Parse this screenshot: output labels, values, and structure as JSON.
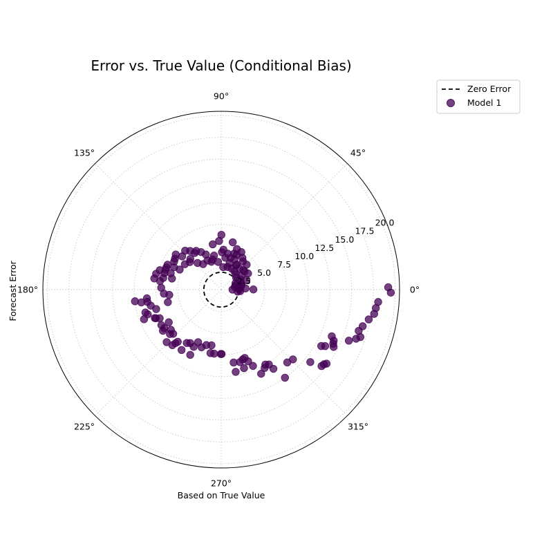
{
  "chart_data": {
    "type": "scatter",
    "projection": "polar",
    "title": "Error vs. True Value (Conditional Bias)",
    "xlabel": "Based on True Value",
    "ylabel": "Forecast Error",
    "theta_tick_labels": [
      "0°",
      "45°",
      "90°",
      "135°",
      "180°",
      "225°",
      "270°",
      "315°"
    ],
    "theta_ticks_deg": [
      0,
      45,
      90,
      135,
      180,
      225,
      270,
      315
    ],
    "r_tick_labels": [
      "2.5",
      "5.0",
      "7.5",
      "10.0",
      "12.5",
      "15.0",
      "17.5",
      "20.0"
    ],
    "r_ticks": [
      2.5,
      5.0,
      7.5,
      10.0,
      12.5,
      15.0,
      17.5,
      20.0
    ],
    "rlim": [
      0,
      20.5
    ],
    "grid": true,
    "legend_position": "upper-right-outside",
    "zero_error_radius": 2,
    "series": [
      {
        "name": "Zero Error",
        "kind": "line",
        "style": "dashed",
        "color": "#000000"
      },
      {
        "name": "Model 1",
        "kind": "scatter",
        "color": "#440154",
        "alpha": 0.75,
        "points": [
          {
            "theta": 0.8,
            "r": 19.2
          },
          {
            "theta": -1.0,
            "r": 19.5
          },
          {
            "theta": -4.5,
            "r": 18.1
          },
          {
            "theta": -6.8,
            "r": 17.9
          },
          {
            "theta": -9.0,
            "r": 17.8
          },
          {
            "theta": -11.4,
            "r": 17.3
          },
          {
            "theta": -14.5,
            "r": 16.8
          },
          {
            "theta": -16.7,
            "r": 16.5
          },
          {
            "theta": -18.8,
            "r": 16.9
          },
          {
            "theta": -20.0,
            "r": 16.5
          },
          {
            "theta": -21.8,
            "r": 15.8
          },
          {
            "theta": -22.9,
            "r": 13.8
          },
          {
            "theta": -24.4,
            "r": 14.2
          },
          {
            "theta": -25.8,
            "r": 14.3
          },
          {
            "theta": -27.0,
            "r": 14.5
          },
          {
            "theta": -28.5,
            "r": 13.6
          },
          {
            "theta": -29.4,
            "r": 13.2
          },
          {
            "theta": -35.1,
            "r": 14.8
          },
          {
            "theta": -36.0,
            "r": 14.6
          },
          {
            "theta": -37.3,
            "r": 14.5
          },
          {
            "theta": -39.1,
            "r": 13.2
          },
          {
            "theta": -44.2,
            "r": 11.5
          },
          {
            "theta": -47.8,
            "r": 11.3
          },
          {
            "theta": -54.1,
            "r": 12.5
          },
          {
            "theta": -56.6,
            "r": 10.9
          },
          {
            "theta": -57.5,
            "r": 10.2
          },
          {
            "theta": -59.5,
            "r": 10.0
          },
          {
            "theta": -61.0,
            "r": 10.3
          },
          {
            "theta": -64.6,
            "r": 10.7
          },
          {
            "theta": -67.4,
            "r": 9.5
          },
          {
            "theta": -69.4,
            "r": 8.8
          },
          {
            "theta": -71.0,
            "r": 8.3
          },
          {
            "theta": -72.9,
            "r": 8.4
          },
          {
            "theta": -73.8,
            "r": 9.4
          },
          {
            "theta": -75.5,
            "r": 8.6
          },
          {
            "theta": -80.0,
            "r": 9.6
          },
          {
            "theta": -80.3,
            "r": 8.5
          },
          {
            "theta": -89.6,
            "r": 7.4
          },
          {
            "theta": -90.4,
            "r": 7.4
          },
          {
            "theta": -96.3,
            "r": 7.4
          },
          {
            "theta": -99.6,
            "r": 7.4
          },
          {
            "theta": -99.9,
            "r": 6.5
          },
          {
            "theta": -105.0,
            "r": 6.6
          },
          {
            "theta": -108.8,
            "r": 7.0
          },
          {
            "theta": -113.7,
            "r": 6.6
          },
          {
            "theta": -115.7,
            "r": 7.3
          },
          {
            "theta": -115.4,
            "r": 8.3
          },
          {
            "theta": -120.1,
            "r": 7.1
          },
          {
            "theta": -122.8,
            "r": 7.3
          },
          {
            "theta": -123.3,
            "r": 8.3
          },
          {
            "theta": -129.8,
            "r": 7.8
          },
          {
            "theta": -130.5,
            "r": 8.1
          },
          {
            "theta": -131.3,
            "r": 8.5
          },
          {
            "theta": -136.1,
            "r": 8.7
          },
          {
            "theta": -137.4,
            "r": 7.5
          },
          {
            "theta": -139.1,
            "r": 7.8
          },
          {
            "theta": -141.4,
            "r": 7.4
          },
          {
            "theta": -144.8,
            "r": 8.2
          },
          {
            "theta": -145.9,
            "r": 7.9
          },
          {
            "theta": -148.1,
            "r": 7.1
          },
          {
            "theta": -149.3,
            "r": 8.0
          },
          {
            "theta": -155.0,
            "r": 7.8
          },
          {
            "theta": -156.4,
            "r": 8.2
          },
          {
            "theta": -156.8,
            "r": 8.3
          },
          {
            "theta": -159.0,
            "r": 9.5
          },
          {
            "theta": -161.4,
            "r": 8.9
          },
          {
            "theta": -163.2,
            "r": 9.1
          },
          {
            "theta": -163.4,
            "r": 7.8
          },
          {
            "theta": -166.8,
            "r": 6.3
          },
          {
            "theta": -167.2,
            "r": 8.3
          },
          {
            "theta": -170.6,
            "r": 8.6
          },
          {
            "theta": -170.9,
            "r": 9.3
          },
          {
            "theta": -172.3,
            "r": 10.0
          },
          {
            "theta": -173.3,
            "r": 8.6
          },
          {
            "theta": -174.2,
            "r": 6.0
          },
          {
            "theta": -176.0,
            "r": 6.6
          },
          {
            "theta": 178.2,
            "r": 6.9
          },
          {
            "theta": 172.0,
            "r": 7.1
          },
          {
            "theta": 170.5,
            "r": 7.8
          },
          {
            "theta": 168.6,
            "r": 6.8
          },
          {
            "theta": 167.3,
            "r": 5.8
          },
          {
            "theta": 166.3,
            "r": 7.7
          },
          {
            "theta": 163.8,
            "r": 6.8
          },
          {
            "theta": 162.4,
            "r": 7.4
          },
          {
            "theta": 162.0,
            "r": 6.1
          },
          {
            "theta": 160.2,
            "r": 6.8
          },
          {
            "theta": 157.9,
            "r": 6.8
          },
          {
            "theta": 155.1,
            "r": 6.8
          },
          {
            "theta": 154.6,
            "r": 6.0
          },
          {
            "theta": 154.2,
            "r": 5.3
          },
          {
            "theta": 149.2,
            "r": 6.3
          },
          {
            "theta": 146.2,
            "r": 6.4
          },
          {
            "theta": 145.0,
            "r": 5.1
          },
          {
            "theta": 142.3,
            "r": 6.6
          },
          {
            "theta": 139.6,
            "r": 5.9
          },
          {
            "theta": 138.7,
            "r": 4.8
          },
          {
            "theta": 135.2,
            "r": 5.0
          },
          {
            "theta": 132.8,
            "r": 6.1
          },
          {
            "theta": 131.6,
            "r": 4.1
          },
          {
            "theta": 128.8,
            "r": 5.7
          },
          {
            "theta": 125.8,
            "r": 5.2
          },
          {
            "theta": 125.4,
            "r": 3.6
          },
          {
            "theta": 122.9,
            "r": 5.3
          },
          {
            "theta": 118.2,
            "r": 4.9
          },
          {
            "theta": 115.2,
            "r": 3.7
          },
          {
            "theta": 113.5,
            "r": 4.4
          },
          {
            "theta": 109.4,
            "r": 3.4
          },
          {
            "theta": 106.0,
            "r": 3.6
          },
          {
            "theta": 101.9,
            "r": 4.0
          },
          {
            "theta": 100.6,
            "r": 5.3
          },
          {
            "theta": 96.3,
            "r": 3.2
          },
          {
            "theta": 92.5,
            "r": 5.6
          },
          {
            "theta": 89.8,
            "r": 6.3
          },
          {
            "theta": 86.8,
            "r": 4.6
          },
          {
            "theta": 84.8,
            "r": 2.6
          },
          {
            "theta": 82.6,
            "r": 3.7
          },
          {
            "theta": 79.6,
            "r": 4.2
          },
          {
            "theta": 76.3,
            "r": 5.6
          },
          {
            "theta": 74.6,
            "r": 2.7
          },
          {
            "theta": 72.4,
            "r": 3.2
          },
          {
            "theta": 70.3,
            "r": 4.4
          },
          {
            "theta": 68.8,
            "r": 5.0
          },
          {
            "theta": 66.3,
            "r": 3.8
          },
          {
            "theta": 64.0,
            "r": 2.7
          },
          {
            "theta": 61.8,
            "r": 4.9
          },
          {
            "theta": 58.6,
            "r": 3.3
          },
          {
            "theta": 56.3,
            "r": 4.4
          },
          {
            "theta": 54.4,
            "r": 2.6
          },
          {
            "theta": 52.3,
            "r": 4.1
          },
          {
            "theta": 48.6,
            "r": 3.2
          },
          {
            "theta": 46.2,
            "r": 2.4
          },
          {
            "theta": 44.5,
            "r": 4.1
          },
          {
            "theta": 41.5,
            "r": 3.4
          },
          {
            "theta": 38.6,
            "r": 2.2
          },
          {
            "theta": 34.4,
            "r": 2.8
          },
          {
            "theta": 31.1,
            "r": 3.6
          },
          {
            "theta": 28.4,
            "r": 2.5
          },
          {
            "theta": 24.0,
            "r": 1.8
          },
          {
            "theta": 20.9,
            "r": 3.1
          },
          {
            "theta": 16.3,
            "r": 1.7
          },
          {
            "theta": 12.7,
            "r": 2.4
          },
          {
            "theta": 9.8,
            "r": 2.3
          },
          {
            "theta": 5.9,
            "r": 2.0
          },
          {
            "theta": 3.0,
            "r": 2.8
          },
          {
            "theta": 0.8,
            "r": 2.1
          },
          {
            "theta": 0.3,
            "r": 1.3
          },
          {
            "theta": -6.8,
            "r": 1.9
          },
          {
            "theta": -4.3,
            "r": 2.2
          },
          {
            "theta": 0.3,
            "r": 3.7
          },
          {
            "theta": 58.0,
            "r": 3.4
          },
          {
            "theta": 66.0,
            "r": 4.4
          },
          {
            "theta": 73.5,
            "r": 3.8
          },
          {
            "theta": 37.8,
            "r": 3.4
          },
          {
            "theta": 88.9,
            "r": 4.3
          },
          {
            "theta": 18.6,
            "r": 2.4
          },
          {
            "theta": 11.0,
            "r": 1.6
          }
        ]
      }
    ]
  }
}
